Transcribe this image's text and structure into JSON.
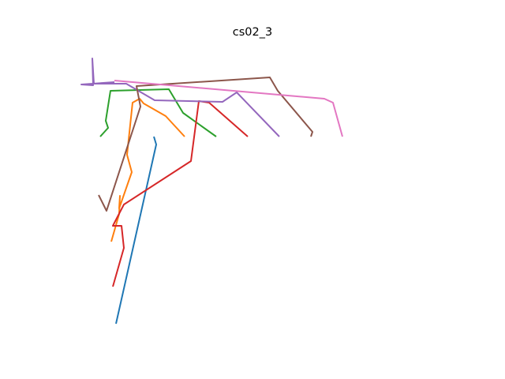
{
  "chart_data": {
    "type": "line",
    "title": "cs02_3",
    "xlabel": "",
    "ylabel": "",
    "axes_visible": false,
    "grid": false,
    "legend": "none",
    "series": [
      {
        "color": "#1f77b4",
        "points": [
          [
            195,
            173
          ],
          [
            198,
            183
          ],
          [
            147,
            410
          ]
        ]
      },
      {
        "color": "#ff7f0e",
        "points": [
          [
            234,
            173
          ],
          [
            210,
            147
          ],
          [
            182,
            131
          ],
          [
            177,
            125
          ],
          [
            168,
            130
          ],
          [
            161,
            196
          ],
          [
            167,
            218
          ],
          [
            151,
            264
          ],
          [
            152,
            248
          ],
          [
            151,
            271
          ],
          [
            141,
            306
          ]
        ]
      },
      {
        "color": "#2ca02c",
        "points": [
          [
            274,
            173
          ],
          [
            232,
            143
          ],
          [
            214,
            113
          ],
          [
            140,
            115
          ],
          [
            134,
            153
          ],
          [
            137,
            162
          ],
          [
            127,
            173
          ]
        ]
      },
      {
        "color": "#d62728",
        "points": [
          [
            314,
            173
          ],
          [
            265,
            130
          ],
          [
            252,
            128
          ],
          [
            242,
            204
          ],
          [
            157,
            259
          ],
          [
            143,
            286
          ],
          [
            154,
            286
          ],
          [
            157,
            314
          ],
          [
            143,
            363
          ]
        ]
      },
      {
        "color": "#9467bd",
        "points": [
          [
            354,
            173
          ],
          [
            300,
            117
          ],
          [
            282,
            129
          ],
          [
            196,
            127
          ],
          [
            160,
            106
          ],
          [
            119,
            106
          ],
          [
            117,
            74
          ],
          [
            118,
            108
          ],
          [
            103,
            107
          ],
          [
            145,
            104
          ]
        ]
      },
      {
        "color": "#8c564b",
        "points": [
          [
            394,
            173
          ],
          [
            396,
            167
          ],
          [
            352,
            115
          ],
          [
            342,
            98
          ],
          [
            173,
            109
          ],
          [
            178,
            135
          ],
          [
            135,
            267
          ],
          [
            125,
            247
          ]
        ]
      },
      {
        "color": "#e377c2",
        "points": [
          [
            434,
            173
          ],
          [
            422,
            130
          ],
          [
            411,
            125
          ],
          [
            145,
            102
          ]
        ]
      }
    ]
  }
}
